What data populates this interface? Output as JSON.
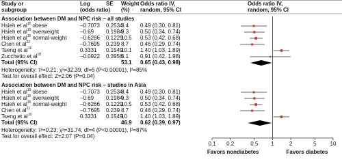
{
  "header": {
    "study": [
      "Study or",
      "subgroup"
    ],
    "log": [
      "Log",
      "(odds ratio)"
    ],
    "se": "SE",
    "weight": [
      "Weight",
      "(%)"
    ],
    "ci": [
      "Odds ratio IV,",
      "random, 95% CI"
    ],
    "plot": [
      "Odds ratio IV,",
      "random, 95% CI"
    ]
  },
  "sections": [
    {
      "title": "Association between DM and NPC risk – all studies",
      "rows": [
        {
          "author": "Hsieh et al",
          "ref": "15",
          "group": "obese",
          "log": "–0.7073",
          "se": 0.2534,
          "weight": 8.4,
          "ci": {
            "est": 0.49,
            "lo": 0.3,
            "hi": 0.81,
            "label": "0.49 (0.30, 0.81)"
          }
        },
        {
          "author": "Hsieh et al",
          "ref": "15",
          "group": "overweight",
          "log": "–0.69",
          "se": 0.1984,
          "weight": 9.3,
          "ci": {
            "est": 0.5,
            "lo": 0.34,
            "hi": 0.74,
            "label": "0.50 (0.34, 0.74)"
          }
        },
        {
          "author": "Hsieh et al",
          "ref": "15",
          "group": "normal-weight",
          "log": "–0.6266",
          "se": 0.1229,
          "weight": 10.5,
          "ci": {
            "est": 0.53,
            "lo": 0.42,
            "hi": 0.68,
            "label": "0.53 (0.42, 0.68)"
          }
        },
        {
          "author": "Chen et al",
          "ref": "22",
          "group": "",
          "log": "–0.7695",
          "se": 0.239,
          "weight": 8.7,
          "ci": {
            "est": 0.46,
            "lo": 0.29,
            "hi": 0.74,
            "label": "0.46 (0.29, 0.74)"
          }
        },
        {
          "author": "Tseng et al",
          "ref": "16",
          "group": "",
          "log": "0.3331",
          "se": 0.1549,
          "weight": 10.1,
          "ci": {
            "est": 1.4,
            "lo": 1.03,
            "hi": 1.89,
            "label": "1.40 (1.03, 1.89)"
          }
        },
        {
          "author": "Zucchetto et al",
          "ref": "18",
          "group": "",
          "log": "–0.0922",
          "se": 0.3956,
          "weight": 6.1,
          "ci": {
            "est": 0.91,
            "lo": 0.42,
            "hi": 1.98,
            "label": "0.91 (0.42, 1.98)"
          }
        }
      ],
      "total": {
        "label": "Total (95% CI)",
        "weight": 53.1,
        "ci": {
          "est": 0.65,
          "lo": 0.43,
          "hi": 0.98,
          "label": "0.65 (0.43, 0.98)"
        }
      },
      "heterogeneity": "Heterogeneity: τ²=0.21; χ²=32.39, df=5 (P<0.00001); I²=85%",
      "overall": "Test for overall effect: Z=2.06 (P=0.04)"
    },
    {
      "title": "Association between DM and NPC risk – studies in Asia",
      "rows": [
        {
          "author": "Hsieh et al",
          "ref": "15",
          "group": "obese",
          "log": "–0.7073",
          "se": 0.2534,
          "weight": 8.4,
          "ci": {
            "est": 0.49,
            "lo": 0.3,
            "hi": 0.81,
            "label": "0.49 (0.30, 0.81)"
          }
        },
        {
          "author": "Hsieh et al",
          "ref": "15",
          "group": "overweight",
          "log": "–0.69",
          "se": 0.1984,
          "weight": 9.3,
          "ci": {
            "est": 0.5,
            "lo": 0.34,
            "hi": 0.74,
            "label": "0.50 (0.34, 0.74)"
          }
        },
        {
          "author": "Hsieh et al",
          "ref": "15",
          "group": "normal-weight",
          "log": "–0.6266",
          "se": 0.1229,
          "weight": 10.5,
          "ci": {
            "est": 0.53,
            "lo": 0.42,
            "hi": 0.68,
            "label": "0.53 (0.42, 0.68)"
          }
        },
        {
          "author": "Chen et al",
          "ref": "22",
          "group": "",
          "log": "–0.7695",
          "se": 0.239,
          "weight": 8.7,
          "ci": {
            "est": 0.46,
            "lo": 0.29,
            "hi": 0.74,
            "label": "0.46 (0.29, 0.74)"
          }
        },
        {
          "author": "Tseng et al",
          "ref": "16",
          "group": "",
          "log": "0.3331",
          "se": 0.1549,
          "weight": 10,
          "ci": {
            "est": 1.4,
            "lo": 1.03,
            "hi": 1.89,
            "label": "1.40 (1.03, 1.89)"
          }
        }
      ],
      "total": {
        "label": "Total (95% CI)",
        "weight": 46.9,
        "ci": {
          "est": 0.62,
          "lo": 0.39,
          "hi": 0.97,
          "label": "0.62 (0.39, 0.97)"
        }
      },
      "heterogeneity": "Heterogeneity: τ²=0.23; χ²=31.74, df=4 (P<0.00001); I²=87%",
      "overall": "Test for overall effect: Z=2.07 (P=0.04)"
    }
  ],
  "axis": {
    "scale": "log",
    "xlim": [
      0.1,
      10
    ],
    "ticks": [
      0.1,
      0.2,
      0.5,
      1,
      2,
      5,
      10
    ],
    "ref_line": 1,
    "favors_left": "Favors nondiabetes",
    "favors_right": "Favors diabetes"
  },
  "marker_color": "#c0392b"
}
